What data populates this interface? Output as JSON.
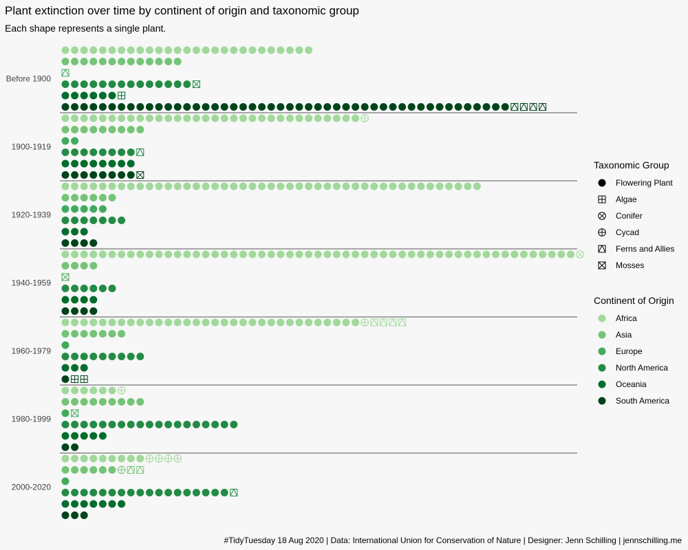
{
  "title": "Plant extinction over time by continent of origin and taxonomic group",
  "subtitle": "Each shape represents a single plant.",
  "caption": "#TidyTuesday 18 Aug 2020 | Data: International Union for Conservation of Nature | Designer: Jenn Schilling | jennschilling.me",
  "colors": {
    "Africa": "#a1d99b",
    "Asia": "#74c476",
    "Europe": "#41ab5d",
    "North America": "#238b45",
    "Oceania": "#006d2c",
    "South America": "#00441b"
  },
  "legend": {
    "taxonomic_title": "Taxonomic Group",
    "taxonomic": [
      {
        "label": "Flowering Plant",
        "shape": "dot"
      },
      {
        "label": "Algae",
        "shape": "square-plus"
      },
      {
        "label": "Conifer",
        "shape": "circle-x"
      },
      {
        "label": "Cycad",
        "shape": "circle-plus"
      },
      {
        "label": "Ferns and Allies",
        "shape": "square-triangle"
      },
      {
        "label": "Mosses",
        "shape": "square-x"
      }
    ],
    "continent_title": "Continent of Origin",
    "continents": [
      "Africa",
      "Asia",
      "Europe",
      "North America",
      "Oceania",
      "South America"
    ]
  },
  "chart_data": {
    "type": "waffle",
    "unit": "one plant per shape",
    "periods": [
      {
        "label": "Before 1900",
        "rows": [
          {
            "continent": "Africa",
            "groups": [
              {
                "group": "Flowering Plant",
                "count": 27
              }
            ]
          },
          {
            "continent": "Asia",
            "groups": [
              {
                "group": "Flowering Plant",
                "count": 13
              }
            ]
          },
          {
            "continent": "Europe",
            "groups": [
              {
                "group": "Ferns and Allies",
                "count": 1
              }
            ]
          },
          {
            "continent": "North America",
            "groups": [
              {
                "group": "Flowering Plant",
                "count": 14
              },
              {
                "group": "Mosses",
                "count": 1
              }
            ]
          },
          {
            "continent": "Oceania",
            "groups": [
              {
                "group": "Flowering Plant",
                "count": 6
              },
              {
                "group": "Algae",
                "count": 1
              }
            ]
          },
          {
            "continent": "South America",
            "groups": [
              {
                "group": "Flowering Plant",
                "count": 48
              },
              {
                "group": "Ferns and Allies",
                "count": 4
              }
            ]
          }
        ]
      },
      {
        "label": "1900-1919",
        "rows": [
          {
            "continent": "Africa",
            "groups": [
              {
                "group": "Flowering Plant",
                "count": 32
              },
              {
                "group": "Cycad",
                "count": 1
              }
            ]
          },
          {
            "continent": "Asia",
            "groups": [
              {
                "group": "Flowering Plant",
                "count": 9
              }
            ]
          },
          {
            "continent": "Europe",
            "groups": [
              {
                "group": "Flowering Plant",
                "count": 2
              }
            ]
          },
          {
            "continent": "North America",
            "groups": [
              {
                "group": "Flowering Plant",
                "count": 8
              },
              {
                "group": "Ferns and Allies",
                "count": 1
              }
            ]
          },
          {
            "continent": "Oceania",
            "groups": [
              {
                "group": "Flowering Plant",
                "count": 8
              }
            ]
          },
          {
            "continent": "South America",
            "groups": [
              {
                "group": "Flowering Plant",
                "count": 8
              },
              {
                "group": "Mosses",
                "count": 1
              }
            ]
          }
        ]
      },
      {
        "label": "1920-1939",
        "rows": [
          {
            "continent": "Africa",
            "groups": [
              {
                "group": "Flowering Plant",
                "count": 45
              }
            ]
          },
          {
            "continent": "Asia",
            "groups": [
              {
                "group": "Flowering Plant",
                "count": 6
              }
            ]
          },
          {
            "continent": "Europe",
            "groups": [
              {
                "group": "Flowering Plant",
                "count": 5
              }
            ]
          },
          {
            "continent": "North America",
            "groups": [
              {
                "group": "Flowering Plant",
                "count": 7
              }
            ]
          },
          {
            "continent": "Oceania",
            "groups": [
              {
                "group": "Flowering Plant",
                "count": 3
              }
            ]
          },
          {
            "continent": "South America",
            "groups": [
              {
                "group": "Flowering Plant",
                "count": 4
              }
            ]
          }
        ]
      },
      {
        "label": "1940-1959",
        "rows": [
          {
            "continent": "Africa",
            "groups": [
              {
                "group": "Flowering Plant",
                "count": 55
              },
              {
                "group": "Conifer",
                "count": 1
              }
            ]
          },
          {
            "continent": "Asia",
            "groups": [
              {
                "group": "Flowering Plant",
                "count": 4
              }
            ]
          },
          {
            "continent": "Europe",
            "groups": [
              {
                "group": "Mosses",
                "count": 1
              }
            ]
          },
          {
            "continent": "North America",
            "groups": [
              {
                "group": "Flowering Plant",
                "count": 6
              }
            ]
          },
          {
            "continent": "Oceania",
            "groups": [
              {
                "group": "Flowering Plant",
                "count": 4
              }
            ]
          },
          {
            "continent": "South America",
            "groups": [
              {
                "group": "Flowering Plant",
                "count": 4
              }
            ]
          }
        ]
      },
      {
        "label": "1960-1979",
        "rows": [
          {
            "continent": "Africa",
            "groups": [
              {
                "group": "Flowering Plant",
                "count": 32
              },
              {
                "group": "Cycad",
                "count": 1
              },
              {
                "group": "Ferns and Allies",
                "count": 4
              }
            ]
          },
          {
            "continent": "Asia",
            "groups": [
              {
                "group": "Flowering Plant",
                "count": 7
              }
            ]
          },
          {
            "continent": "Europe",
            "groups": [
              {
                "group": "Flowering Plant",
                "count": 1
              }
            ]
          },
          {
            "continent": "North America",
            "groups": [
              {
                "group": "Flowering Plant",
                "count": 9
              }
            ]
          },
          {
            "continent": "Oceania",
            "groups": [
              {
                "group": "Flowering Plant",
                "count": 3
              }
            ]
          },
          {
            "continent": "South America",
            "groups": [
              {
                "group": "Flowering Plant",
                "count": 1
              },
              {
                "group": "Algae",
                "count": 2
              }
            ]
          }
        ]
      },
      {
        "label": "1980-1999",
        "rows": [
          {
            "continent": "Africa",
            "groups": [
              {
                "group": "Flowering Plant",
                "count": 6
              },
              {
                "group": "Cycad",
                "count": 1
              }
            ]
          },
          {
            "continent": "Asia",
            "groups": [
              {
                "group": "Flowering Plant",
                "count": 9
              }
            ]
          },
          {
            "continent": "Europe",
            "groups": [
              {
                "group": "Flowering Plant",
                "count": 1
              },
              {
                "group": "Mosses",
                "count": 1
              }
            ]
          },
          {
            "continent": "North America",
            "groups": [
              {
                "group": "Flowering Plant",
                "count": 19
              }
            ]
          },
          {
            "continent": "Oceania",
            "groups": [
              {
                "group": "Flowering Plant",
                "count": 5
              }
            ]
          },
          {
            "continent": "South America",
            "groups": [
              {
                "group": "Flowering Plant",
                "count": 2
              }
            ]
          }
        ]
      },
      {
        "label": "2000-2020",
        "rows": [
          {
            "continent": "Africa",
            "groups": [
              {
                "group": "Flowering Plant",
                "count": 9
              },
              {
                "group": "Cycad",
                "count": 4
              }
            ]
          },
          {
            "continent": "Asia",
            "groups": [
              {
                "group": "Flowering Plant",
                "count": 6
              },
              {
                "group": "Cycad",
                "count": 1
              },
              {
                "group": "Ferns and Allies",
                "count": 2
              }
            ]
          },
          {
            "continent": "Europe",
            "groups": [
              {
                "group": "Flowering Plant",
                "count": 1
              }
            ]
          },
          {
            "continent": "North America",
            "groups": [
              {
                "group": "Flowering Plant",
                "count": 18
              },
              {
                "group": "Ferns and Allies",
                "count": 1
              }
            ]
          },
          {
            "continent": "Oceania",
            "groups": [
              {
                "group": "Flowering Plant",
                "count": 7
              }
            ]
          },
          {
            "continent": "South America",
            "groups": [
              {
                "group": "Flowering Plant",
                "count": 3
              }
            ]
          }
        ]
      }
    ]
  }
}
